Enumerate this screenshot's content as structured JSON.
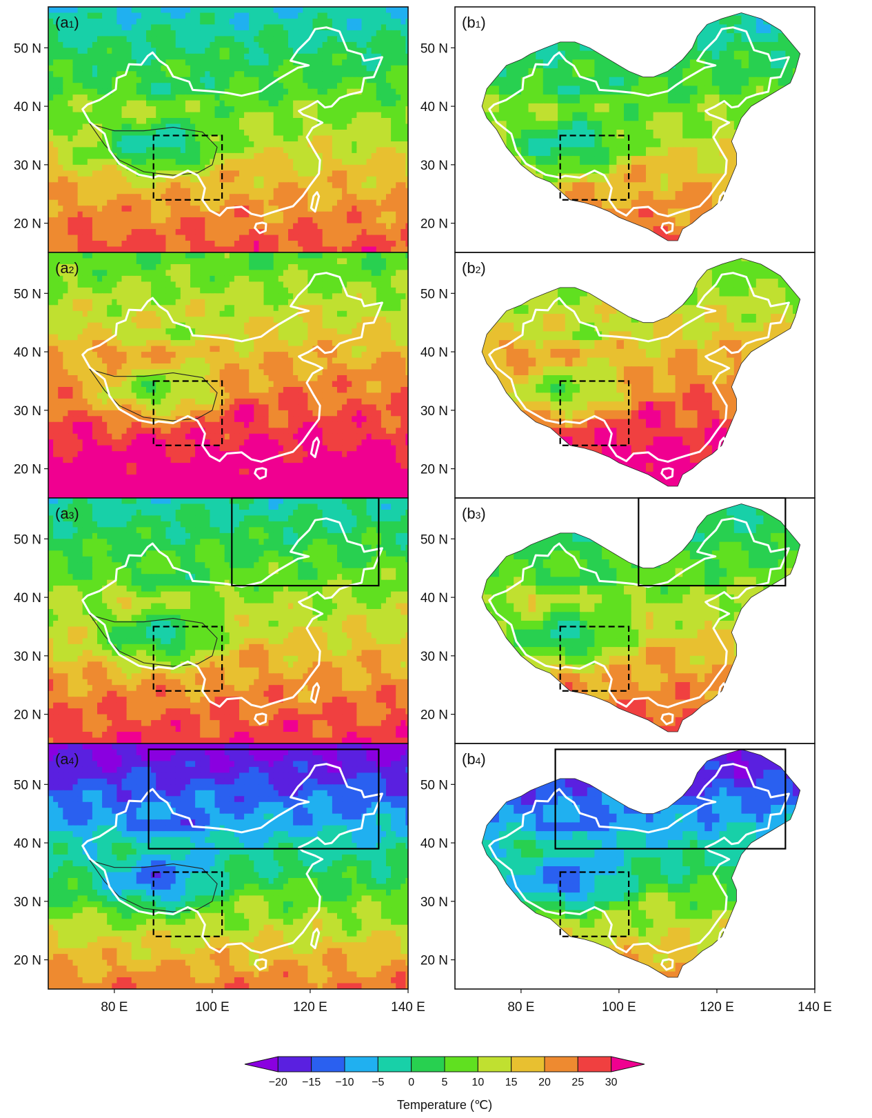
{
  "panels": [
    {
      "id": "a1",
      "letter": "a",
      "index": "1",
      "kind": "model",
      "base": 12,
      "solid_box": null
    },
    {
      "id": "b1",
      "letter": "b",
      "index": "1",
      "kind": "obs",
      "base": 12,
      "solid_box": null
    },
    {
      "id": "a2",
      "letter": "a",
      "index": "2",
      "kind": "model",
      "base": 22,
      "solid_box": null
    },
    {
      "id": "b2",
      "letter": "b",
      "index": "2",
      "kind": "obs",
      "base": 22,
      "solid_box": null
    },
    {
      "id": "a3",
      "letter": "a",
      "index": "3",
      "kind": "model",
      "base": 14,
      "solid_box": [
        104,
        42,
        134,
        57
      ]
    },
    {
      "id": "b3",
      "letter": "b",
      "index": "3",
      "kind": "obs",
      "base": 14,
      "solid_box": [
        104,
        42,
        134,
        57
      ]
    },
    {
      "id": "a4",
      "letter": "a",
      "index": "4",
      "kind": "model",
      "base": 2,
      "solid_box": [
        87,
        39,
        134,
        56
      ]
    },
    {
      "id": "b4",
      "letter": "b",
      "index": "4",
      "kind": "obs",
      "base": 2,
      "solid_box": [
        87,
        39,
        134,
        56
      ]
    }
  ],
  "dashed_box": [
    88,
    24,
    102,
    35
  ],
  "lon_ticks": [
    {
      "value": 80,
      "label": "80 E"
    },
    {
      "value": 100,
      "label": "100 E"
    },
    {
      "value": 120,
      "label": "120 E"
    },
    {
      "value": 140,
      "label": "140 E"
    }
  ],
  "lat_ticks": [
    {
      "value": 50,
      "label": "50 N"
    },
    {
      "value": 40,
      "label": "40 N"
    },
    {
      "value": 30,
      "label": "30 N"
    },
    {
      "value": 20,
      "label": "20 N"
    }
  ],
  "colorbar": {
    "title": "Temperature (℃)",
    "levels": [
      "−20",
      "−15",
      "−10",
      "−5",
      "0",
      "5",
      "10",
      "15",
      "20",
      "25",
      "30"
    ],
    "colors": [
      "#8a00e0",
      "#5a20e0",
      "#2a60f0",
      "#20b0f0",
      "#18d0a8",
      "#28d050",
      "#60e020",
      "#c0e030",
      "#e8c030",
      "#ee8a30",
      "#f04040",
      "#f00090"
    ]
  }
}
